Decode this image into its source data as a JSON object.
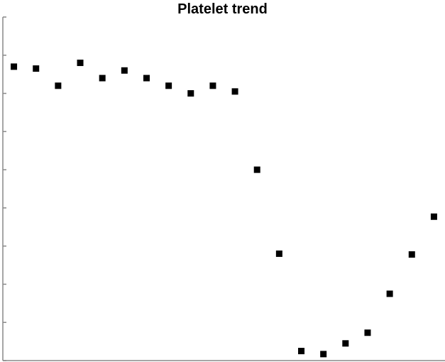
{
  "chart_data": {
    "type": "scatter",
    "title": "Platelet trend",
    "xlabel": "",
    "ylabel": "",
    "ylim": [
      0,
      9
    ],
    "xlim": [
      0.5,
      20.5
    ],
    "grid": false,
    "y_ticks": [
      0,
      1,
      2,
      3,
      4,
      5,
      6,
      7,
      8,
      9
    ],
    "marker_color": "#000000",
    "marker": "square",
    "x": [
      1,
      2,
      3,
      4,
      5,
      6,
      7,
      8,
      9,
      10,
      11,
      12,
      13,
      14,
      15,
      16,
      17,
      18,
      19,
      20
    ],
    "y": [
      7.7,
      7.65,
      7.2,
      7.8,
      7.4,
      7.6,
      7.4,
      7.2,
      7.0,
      7.2,
      7.05,
      5.0,
      2.8,
      0.25,
      0.17,
      0.45,
      0.73,
      1.75,
      2.78,
      3.77
    ]
  }
}
